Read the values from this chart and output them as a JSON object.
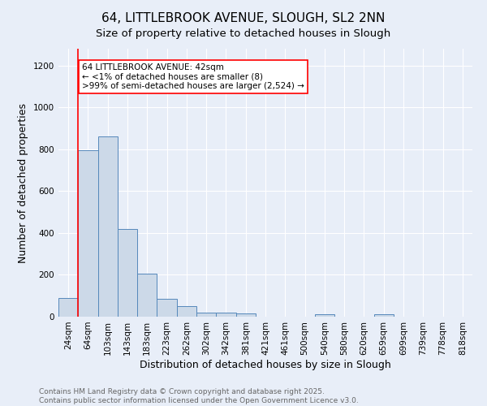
{
  "title1": "64, LITTLEBROOK AVENUE, SLOUGH, SL2 2NN",
  "title2": "Size of property relative to detached houses in Slough",
  "xlabel": "Distribution of detached houses by size in Slough",
  "ylabel": "Number of detached properties",
  "categories": [
    "24sqm",
    "64sqm",
    "103sqm",
    "143sqm",
    "183sqm",
    "223sqm",
    "262sqm",
    "302sqm",
    "342sqm",
    "381sqm",
    "421sqm",
    "461sqm",
    "500sqm",
    "540sqm",
    "580sqm",
    "620sqm",
    "659sqm",
    "699sqm",
    "739sqm",
    "778sqm",
    "818sqm"
  ],
  "values": [
    90,
    795,
    860,
    420,
    205,
    85,
    50,
    20,
    20,
    15,
    0,
    0,
    0,
    12,
    0,
    0,
    12,
    0,
    0,
    0,
    0
  ],
  "bar_color": "#ccd9e8",
  "bar_edge_color": "#5588bb",
  "red_line_index": 1,
  "annotation_text": "64 LITTLEBROOK AVENUE: 42sqm\n← <1% of detached houses are smaller (8)\n>99% of semi-detached houses are larger (2,524) →",
  "annotation_box_color": "white",
  "annotation_box_edge": "red",
  "ylim": [
    0,
    1280
  ],
  "yticks": [
    0,
    200,
    400,
    600,
    800,
    1000,
    1200
  ],
  "footer1": "Contains HM Land Registry data © Crown copyright and database right 2025.",
  "footer2": "Contains public sector information licensed under the Open Government Licence v3.0.",
  "bg_color": "#e8eef8",
  "title1_fontsize": 11,
  "title2_fontsize": 9.5,
  "axis_label_fontsize": 9,
  "tick_fontsize": 7.5,
  "annotation_fontsize": 7.5,
  "footer_fontsize": 6.5
}
